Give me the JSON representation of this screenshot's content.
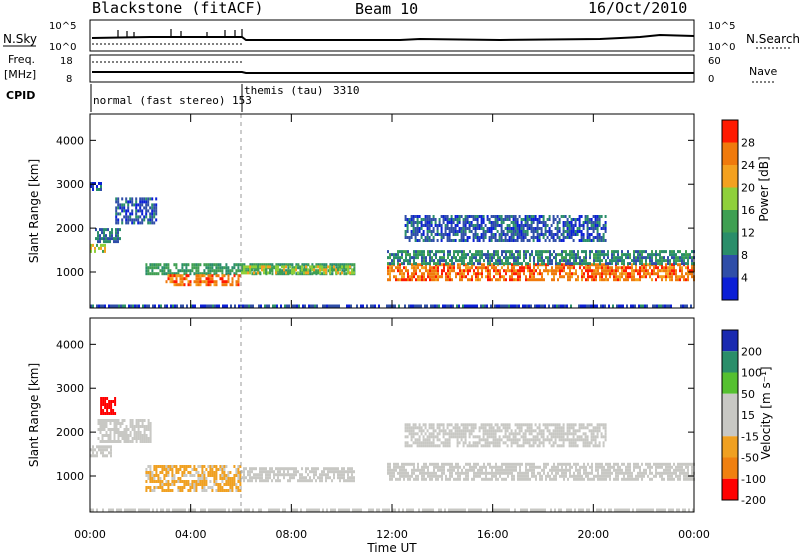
{
  "header": {
    "station": "Blackstone (fitACF)",
    "beam": "Beam 10",
    "date": "16/Oct/2010"
  },
  "top_panels": {
    "nsky_label": "N.Sky",
    "nsky_ticks": [
      "10^5",
      "10^0"
    ],
    "nsearch_label": "N.Search",
    "nsearch_ticks": [
      "10^5",
      "10^0"
    ],
    "freq_label": "Freq.",
    "freq_unit": "[MHz]",
    "freq_ticks": [
      "18",
      "8"
    ],
    "nave_label": "Nave",
    "nave_ticks": [
      "60",
      "0"
    ],
    "cpid_label": "CPID",
    "modes": [
      {
        "name": "normal (fast stereo)",
        "cpid": "153",
        "start_hour": 0
      },
      {
        "name": "themis (tau)",
        "cpid": "3310",
        "start_hour": 6
      }
    ]
  },
  "colors": {
    "power_scale": [
      "#0b1fd6",
      "#2f4ea8",
      "#2a8e6a",
      "#3f9f52",
      "#8fcf3a",
      "#f4a11f",
      "#f07a0c",
      "#ff1a00"
    ],
    "velocity_scale": [
      "#ff0000",
      "#f08010",
      "#f0a020",
      "#c8c8c4",
      "#c8c8c4",
      "#55c030",
      "#2a8e6a",
      "#1a2ab0"
    ]
  },
  "axes": {
    "ylabel": "Slant Range [km]",
    "xlabel": "Time UT",
    "x_ticks": [
      "00:00",
      "04:00",
      "08:00",
      "12:00",
      "16:00",
      "20:00",
      "00:00"
    ],
    "y_ticks": [
      "1000",
      "2000",
      "3000",
      "4000"
    ]
  },
  "colorbars": {
    "power": {
      "label": "Power [dB]",
      "ticks": [
        "28",
        "24",
        "20",
        "16",
        "12",
        "8",
        "4"
      ]
    },
    "velocity": {
      "label": "Velocity [m s⁻¹]",
      "ticks": [
        "200",
        "100",
        "50",
        "15",
        "-15",
        "-50",
        "-100",
        "-200"
      ]
    }
  },
  "chart_data": [
    {
      "type": "heatmap",
      "name": "Power",
      "xlabel": "Time UT",
      "ylabel": "Slant Range [km]",
      "xlim": [
        0,
        24
      ],
      "ylim": [
        180,
        4600
      ],
      "colorbar": {
        "label": "Power [dB]",
        "range": [
          0,
          32
        ],
        "ticks": [
          4,
          8,
          12,
          16,
          20,
          24,
          28
        ]
      },
      "bands": [
        {
          "t": [
            0.0,
            0.6
          ],
          "r": [
            1480,
            1640
          ],
          "power": 18
        },
        {
          "t": [
            0.2,
            1.2
          ],
          "r": [
            1700,
            2000
          ],
          "power": 8
        },
        {
          "t": [
            0.0,
            0.4
          ],
          "r": [
            2900,
            3050
          ],
          "power": 6
        },
        {
          "t": [
            1.0,
            2.6
          ],
          "r": [
            2100,
            2700
          ],
          "power": 6
        },
        {
          "t": [
            2.2,
            10.5
          ],
          "r": [
            950,
            1200
          ],
          "power": 12
        },
        {
          "t": [
            3.0,
            6.0
          ],
          "r": [
            700,
            950
          ],
          "power": 26
        },
        {
          "t": [
            6.0,
            10.5
          ],
          "r": [
            950,
            1150
          ],
          "power": 18
        },
        {
          "t": [
            11.8,
            24.0
          ],
          "r": [
            800,
            1200
          ],
          "power": 26
        },
        {
          "t": [
            11.8,
            24.0
          ],
          "r": [
            1200,
            1500
          ],
          "power": 10
        },
        {
          "t": [
            12.5,
            20.5
          ],
          "r": [
            1700,
            2300
          ],
          "power": 6
        },
        {
          "t": [
            0.0,
            24.0
          ],
          "r": [
            200,
            260
          ],
          "power": 5
        }
      ],
      "vline_hour": 6
    },
    {
      "type": "heatmap",
      "name": "Velocity",
      "xlabel": "Time UT",
      "ylabel": "Slant Range [km]",
      "xlim": [
        0,
        24
      ],
      "ylim": [
        180,
        4600
      ],
      "colorbar": {
        "label": "Velocity [m s⁻¹]",
        "range": [
          -250,
          250
        ],
        "ticks": [
          200,
          100,
          50,
          15,
          -15,
          -50,
          -100,
          -200
        ]
      },
      "bands": [
        {
          "t": [
            0.0,
            0.8
          ],
          "r": [
            1450,
            1700
          ],
          "velocity": 0
        },
        {
          "t": [
            0.4,
            1.0
          ],
          "r": [
            2450,
            2800
          ],
          "velocity": -220
        },
        {
          "t": [
            0.3,
            2.4
          ],
          "r": [
            1800,
            2300
          ],
          "velocity": 0
        },
        {
          "t": [
            2.2,
            6.0
          ],
          "r": [
            700,
            1250
          ],
          "velocity": -70
        },
        {
          "t": [
            6.0,
            10.5
          ],
          "r": [
            900,
            1200
          ],
          "velocity": 0
        },
        {
          "t": [
            11.8,
            24.0
          ],
          "r": [
            900,
            1300
          ],
          "velocity": 0
        },
        {
          "t": [
            12.5,
            20.5
          ],
          "r": [
            1700,
            2200
          ],
          "velocity": 0
        },
        {
          "t": [
            0.0,
            24.0
          ],
          "r": [
            200,
            260
          ],
          "velocity": 30
        }
      ],
      "vline_hour": 6
    }
  ]
}
